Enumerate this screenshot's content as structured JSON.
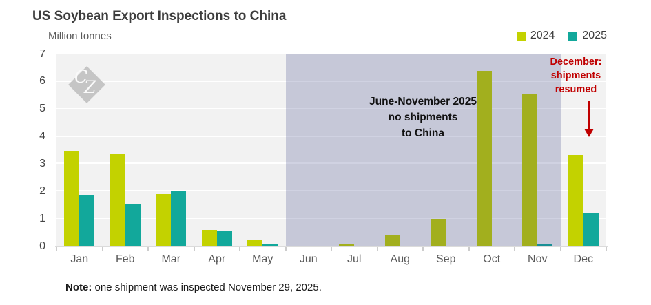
{
  "title": "US Soybean Export Inspections to China",
  "subtitle": "Million tonnes",
  "legend": [
    {
      "label": "2024",
      "color": "#c3d200"
    },
    {
      "label": "2025",
      "color": "#12a89b"
    }
  ],
  "watermark": {
    "letter_c": "C",
    "letter_z": "Z"
  },
  "annotations": {
    "no_shipments": "June-November 2025\nno shipments\nto China",
    "december": "December:\nshipments\nresumed",
    "december_color": "#c00000"
  },
  "note": {
    "label": "Note:",
    "text": " one shipment was inspected November 29, 2025."
  },
  "colors": {
    "plot_background": "#f2f2f2",
    "gridline": "#ffffff",
    "shading_overlay": "rgba(50,60,130,0.23)",
    "series_2024": "#c3d200",
    "series_2025": "#12a89b",
    "annotation_red": "#c00000"
  },
  "chart_data": {
    "type": "bar",
    "title": "US Soybean Export Inspections to China",
    "ylabel": "Million tonnes",
    "categories": [
      "Jan",
      "Feb",
      "Mar",
      "Apr",
      "May",
      "Jun",
      "Jul",
      "Aug",
      "Sep",
      "Oct",
      "Nov",
      "Dec"
    ],
    "series": [
      {
        "name": "2024",
        "color": "#c3d200",
        "values": [
          3.43,
          3.35,
          1.88,
          0.57,
          0.22,
          0,
          0.06,
          0.4,
          0.97,
          6.37,
          5.54,
          3.31
        ]
      },
      {
        "name": "2025",
        "color": "#12a89b",
        "values": [
          1.86,
          1.53,
          1.98,
          0.52,
          0.06,
          0,
          0,
          0,
          0,
          0,
          0.05,
          1.19
        ]
      }
    ],
    "ylim": [
      0,
      7
    ],
    "yticks": [
      0,
      1,
      2,
      3,
      4,
      5,
      6,
      7
    ],
    "grid": true,
    "legend_position": "top-right",
    "shaded_region": {
      "from": "Jun",
      "to": "Nov",
      "color": "rgba(50,60,130,0.23)",
      "label": "June-November 2025 no shipments to China"
    }
  }
}
